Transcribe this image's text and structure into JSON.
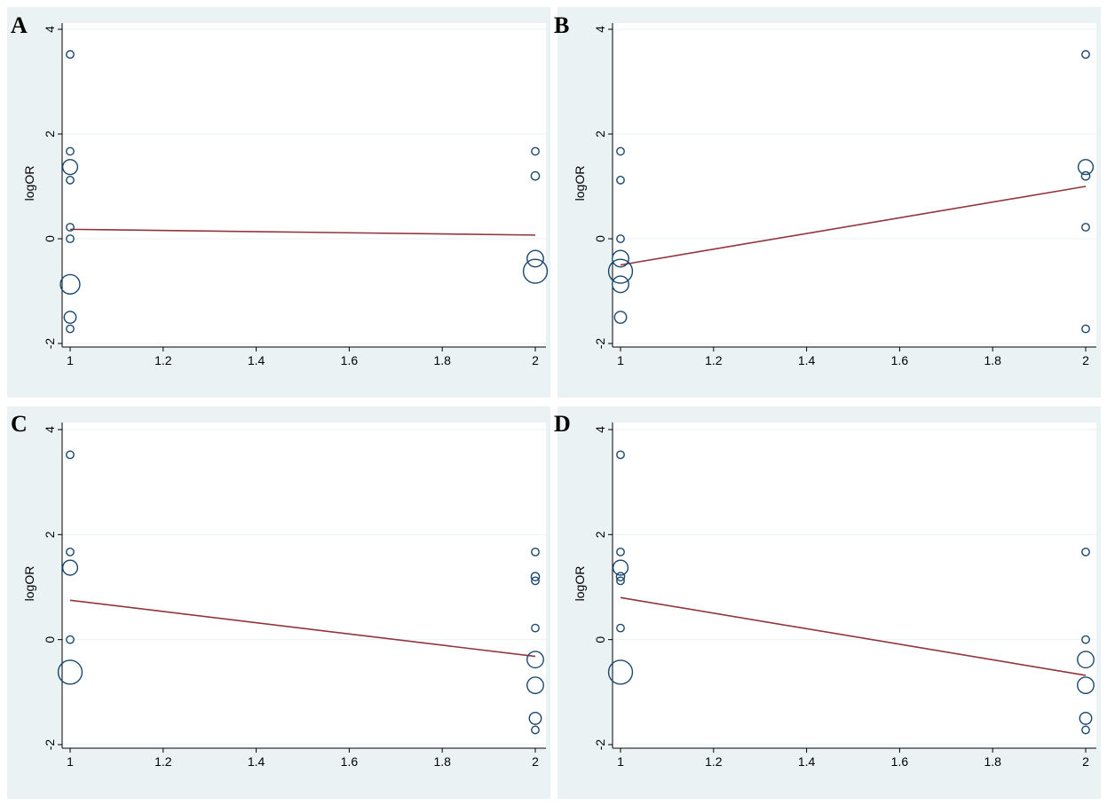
{
  "colors": {
    "panel_background": "#eaf2f3",
    "plot_background": "#ffffff",
    "grid": "#eaf2f3",
    "marker_stroke": "#1a476f",
    "fit_line": "#90353b",
    "axis": "#000000"
  },
  "chart_data": [
    {
      "panel": "A",
      "type": "scatter",
      "ylabel": "logOR",
      "xlabel": "",
      "xlim": [
        1,
        2
      ],
      "ylim": [
        -2,
        4
      ],
      "x_ticks": [
        "1",
        "1.2",
        "1.4",
        "1.6",
        "1.8",
        "2"
      ],
      "y_ticks": [
        "-2",
        "0",
        "2",
        "4"
      ],
      "grid": true,
      "points": [
        {
          "x": 1,
          "y": 3.52,
          "size": 1
        },
        {
          "x": 1,
          "y": 1.67,
          "size": 1
        },
        {
          "x": 1,
          "y": 1.37,
          "size": 2
        },
        {
          "x": 1,
          "y": 1.12,
          "size": 1
        },
        {
          "x": 1,
          "y": 0.22,
          "size": 1
        },
        {
          "x": 1,
          "y": 0.0,
          "size": 1
        },
        {
          "x": 1,
          "y": -0.87,
          "size": 2.6
        },
        {
          "x": 1,
          "y": -1.5,
          "size": 1.6
        },
        {
          "x": 1,
          "y": -1.72,
          "size": 1
        },
        {
          "x": 2,
          "y": 1.67,
          "size": 1
        },
        {
          "x": 2,
          "y": 1.2,
          "size": 1.1
        },
        {
          "x": 2,
          "y": -0.38,
          "size": 2.2
        },
        {
          "x": 2,
          "y": -0.62,
          "size": 3.2
        }
      ],
      "fit_line": {
        "x": [
          1,
          2
        ],
        "y": [
          0.18,
          0.07
        ]
      }
    },
    {
      "panel": "B",
      "type": "scatter",
      "ylabel": "logOR",
      "xlabel": "",
      "xlim": [
        1,
        2
      ],
      "ylim": [
        -2,
        4
      ],
      "x_ticks": [
        "1",
        "1.2",
        "1.4",
        "1.6",
        "1.8",
        "2"
      ],
      "y_ticks": [
        "-2",
        "0",
        "2",
        "4"
      ],
      "grid": true,
      "points": [
        {
          "x": 1,
          "y": 1.67,
          "size": 1
        },
        {
          "x": 1,
          "y": 1.12,
          "size": 1
        },
        {
          "x": 1,
          "y": 0.0,
          "size": 1
        },
        {
          "x": 1,
          "y": -0.38,
          "size": 2.2
        },
        {
          "x": 1,
          "y": -0.62,
          "size": 3.2
        },
        {
          "x": 1,
          "y": -0.87,
          "size": 2.2
        },
        {
          "x": 1,
          "y": -1.5,
          "size": 1.6
        },
        {
          "x": 2,
          "y": 3.52,
          "size": 1
        },
        {
          "x": 2,
          "y": 1.37,
          "size": 2
        },
        {
          "x": 2,
          "y": 1.2,
          "size": 1.1
        },
        {
          "x": 2,
          "y": 0.22,
          "size": 1
        },
        {
          "x": 2,
          "y": -1.72,
          "size": 1
        }
      ],
      "fit_line": {
        "x": [
          1,
          2
        ],
        "y": [
          -0.5,
          1.0
        ]
      }
    },
    {
      "panel": "C",
      "type": "scatter",
      "ylabel": "logOR",
      "xlabel": "",
      "xlim": [
        1,
        2
      ],
      "ylim": [
        -2,
        4
      ],
      "x_ticks": [
        "1",
        "1.2",
        "1.4",
        "1.6",
        "1.8",
        "2"
      ],
      "y_ticks": [
        "-2",
        "0",
        "2",
        "4"
      ],
      "grid": true,
      "points": [
        {
          "x": 1,
          "y": 3.52,
          "size": 1
        },
        {
          "x": 1,
          "y": 1.67,
          "size": 1
        },
        {
          "x": 1,
          "y": 1.37,
          "size": 2
        },
        {
          "x": 1,
          "y": 0.0,
          "size": 1
        },
        {
          "x": 1,
          "y": -0.62,
          "size": 3.2
        },
        {
          "x": 2,
          "y": 1.67,
          "size": 1
        },
        {
          "x": 2,
          "y": 1.2,
          "size": 1.1
        },
        {
          "x": 2,
          "y": 1.12,
          "size": 1
        },
        {
          "x": 2,
          "y": 0.22,
          "size": 1
        },
        {
          "x": 2,
          "y": -0.38,
          "size": 2.2
        },
        {
          "x": 2,
          "y": -0.87,
          "size": 2.2
        },
        {
          "x": 2,
          "y": -1.5,
          "size": 1.6
        },
        {
          "x": 2,
          "y": -1.72,
          "size": 1
        }
      ],
      "fit_line": {
        "x": [
          1,
          2
        ],
        "y": [
          0.75,
          -0.32
        ]
      }
    },
    {
      "panel": "D",
      "type": "scatter",
      "ylabel": "logOR",
      "xlabel": "",
      "xlim": [
        1,
        2
      ],
      "ylim": [
        -2,
        4
      ],
      "x_ticks": [
        "1",
        "1.2",
        "1.4",
        "1.6",
        "1.8",
        "2"
      ],
      "y_ticks": [
        "-2",
        "0",
        "2",
        "4"
      ],
      "grid": true,
      "points": [
        {
          "x": 1,
          "y": 3.52,
          "size": 1
        },
        {
          "x": 1,
          "y": 1.67,
          "size": 1
        },
        {
          "x": 1,
          "y": 1.37,
          "size": 2
        },
        {
          "x": 1,
          "y": 1.2,
          "size": 1.1
        },
        {
          "x": 1,
          "y": 1.12,
          "size": 1
        },
        {
          "x": 1,
          "y": 0.22,
          "size": 1
        },
        {
          "x": 1,
          "y": -0.62,
          "size": 3.2
        },
        {
          "x": 2,
          "y": 1.67,
          "size": 1
        },
        {
          "x": 2,
          "y": 0.0,
          "size": 1
        },
        {
          "x": 2,
          "y": -0.38,
          "size": 2.2
        },
        {
          "x": 2,
          "y": -0.87,
          "size": 2.2
        },
        {
          "x": 2,
          "y": -1.5,
          "size": 1.6
        },
        {
          "x": 2,
          "y": -1.72,
          "size": 1
        }
      ],
      "fit_line": {
        "x": [
          1,
          2
        ],
        "y": [
          0.8,
          -0.68
        ]
      }
    }
  ]
}
